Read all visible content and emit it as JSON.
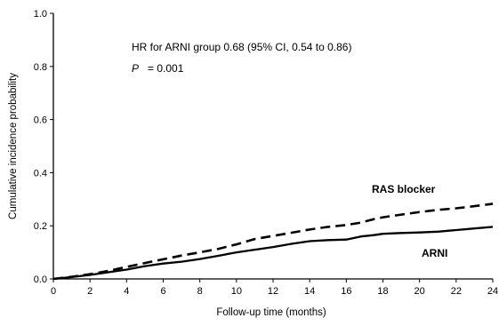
{
  "chart_data": {
    "type": "line",
    "xlabel": "Follow-up time (months)",
    "ylabel": "Cumulative incidence probability",
    "xlim": [
      0,
      24
    ],
    "ylim": [
      0,
      1.0
    ],
    "x_ticks": [
      "0",
      "2",
      "4",
      "6",
      "8",
      "10",
      "12",
      "14",
      "16",
      "18",
      "20",
      "22",
      "24"
    ],
    "y_ticks": [
      "0.0",
      "0.2",
      "0.4",
      "0.6",
      "0.8",
      "1.0"
    ],
    "grid": false,
    "annotations": {
      "hr_text": "HR for ARNI group 0.68 (95% CI, 0.54 to 0.86)",
      "p_label": "P",
      "p_value": "= 0.001"
    },
    "series": [
      {
        "name": "RAS blocker",
        "line_style": "dashed",
        "x": [
          0,
          1,
          2,
          3,
          4,
          5,
          6,
          7,
          8,
          9,
          10,
          11,
          12,
          13,
          14,
          15,
          16,
          16.8,
          17.5,
          18,
          19,
          20,
          21,
          22,
          23,
          24
        ],
        "y": [
          0.0,
          0.008,
          0.018,
          0.03,
          0.045,
          0.06,
          0.074,
          0.088,
          0.1,
          0.113,
          0.13,
          0.15,
          0.162,
          0.174,
          0.186,
          0.196,
          0.203,
          0.212,
          0.225,
          0.232,
          0.242,
          0.252,
          0.26,
          0.266,
          0.274,
          0.283
        ]
      },
      {
        "name": "ARNI",
        "line_style": "solid",
        "x": [
          0,
          1,
          2,
          3,
          4,
          5,
          6,
          7,
          8,
          9,
          10,
          11,
          12,
          13,
          14,
          15,
          16,
          16.8,
          17.5,
          18,
          19,
          20,
          21,
          22,
          23,
          24
        ],
        "y": [
          0.0,
          0.007,
          0.015,
          0.025,
          0.035,
          0.048,
          0.058,
          0.065,
          0.075,
          0.087,
          0.1,
          0.11,
          0.12,
          0.132,
          0.142,
          0.146,
          0.148,
          0.16,
          0.165,
          0.17,
          0.173,
          0.175,
          0.178,
          0.184,
          0.19,
          0.196
        ]
      }
    ]
  }
}
